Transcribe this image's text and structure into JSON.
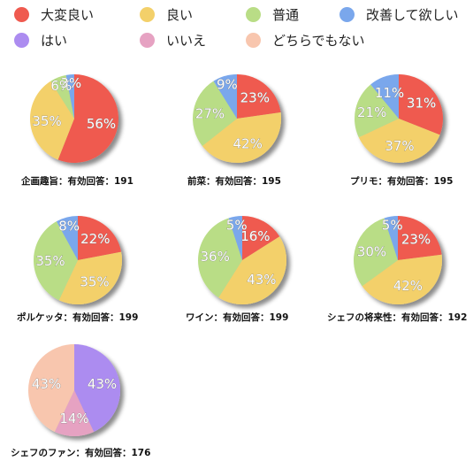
{
  "legend": [
    {
      "label": "大変良い",
      "color": "#ef5a4f"
    },
    {
      "label": "良い",
      "color": "#f3d06a"
    },
    {
      "label": "普通",
      "color": "#b9dd86"
    },
    {
      "label": "改善して欲しい",
      "color": "#7aa7ec"
    },
    {
      "label": "はい",
      "color": "#ac8cf0"
    },
    {
      "label": "いいえ",
      "color": "#e6a2c2"
    },
    {
      "label": "どちらでもない",
      "color": "#f8c6ae"
    }
  ],
  "chart_data": [
    {
      "type": "pie",
      "title": "企画趣旨：有効回答：191",
      "categories": [
        "大変良い",
        "良い",
        "普通",
        "改善して欲しい"
      ],
      "values": [
        56,
        35,
        6,
        3
      ]
    },
    {
      "type": "pie",
      "title": "前菜：有効回答：195",
      "categories": [
        "大変良い",
        "良い",
        "普通",
        "改善して欲しい"
      ],
      "values": [
        23,
        42,
        27,
        9
      ]
    },
    {
      "type": "pie",
      "title": "プリモ：有効回答：195",
      "categories": [
        "大変良い",
        "良い",
        "普通",
        "改善して欲しい"
      ],
      "values": [
        31,
        37,
        21,
        11
      ]
    },
    {
      "type": "pie",
      "title": "ポルケッタ：有効回答：199",
      "categories": [
        "大変良い",
        "良い",
        "普通",
        "改善して欲しい"
      ],
      "values": [
        22,
        35,
        35,
        8
      ]
    },
    {
      "type": "pie",
      "title": "ワイン：有効回答：199",
      "categories": [
        "大変良い",
        "良い",
        "普通",
        "改善して欲しい"
      ],
      "values": [
        16,
        43,
        36,
        5
      ]
    },
    {
      "type": "pie",
      "title": "シェフの将来性：有効回答：192",
      "categories": [
        "大変良い",
        "良い",
        "普通",
        "改善して欲しい"
      ],
      "values": [
        23,
        42,
        30,
        5
      ]
    },
    {
      "type": "pie",
      "title": "シェフのファン：有効回答：176",
      "categories": [
        "はい",
        "いいえ",
        "どちらでもない"
      ],
      "values": [
        43,
        14,
        43
      ]
    }
  ]
}
